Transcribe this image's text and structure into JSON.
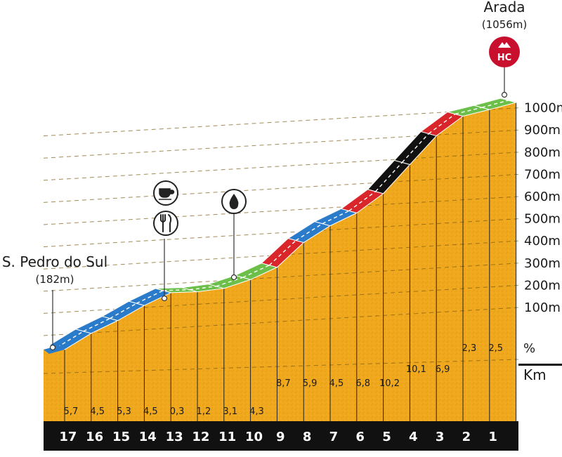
{
  "chart_data": {
    "type": "area",
    "title": "Arada",
    "start": {
      "name": "S. Pedro do Sul",
      "altitude_label": "(182m)",
      "altitude_m": 182
    },
    "finish": {
      "name": "Arada",
      "altitude_label": "(1056m)",
      "altitude_m": 1056,
      "category": "HC"
    },
    "xlabel": "Km",
    "gradient_label": "%",
    "y_ticks": [
      "100m",
      "200m",
      "300m",
      "400m",
      "500m",
      "600m",
      "700m",
      "800m",
      "900m",
      "1000m"
    ],
    "ylim": [
      0,
      1000
    ],
    "km_labels": [
      "17",
      "16",
      "15",
      "14",
      "13",
      "12",
      "11",
      "10",
      "9",
      "8",
      "7",
      "6",
      "5",
      "4",
      "3",
      "2",
      "1"
    ],
    "gradients": [
      "5,7",
      "4,5",
      "5,3",
      "4,5",
      "0,3",
      "1,2",
      "3,1",
      "4,3",
      "8,7",
      "5,9",
      "4,5",
      "6,8",
      "10,2",
      "10,1",
      "6,9",
      "2,3",
      "2,5"
    ],
    "segment_colors": [
      "#2a7bc9",
      "#2a7bc9",
      "#2a7bc9",
      "#2a7bc9",
      "#6cc04a",
      "#6cc04a",
      "#6cc04a",
      "#6cc04a",
      "#d9262b",
      "#2a7bc9",
      "#2a7bc9",
      "#d9262b",
      "#111111",
      "#111111",
      "#d9262b",
      "#6cc04a",
      "#6cc04a"
    ],
    "points_of_interest": [
      {
        "name": "feed-zone",
        "icons": [
          "coffee-cup-icon",
          "fork-knife-icon"
        ],
        "at_km_remaining": 13.5
      },
      {
        "name": "water-point",
        "icons": [
          "water-drop-icon"
        ],
        "at_km_remaining": 11
      }
    ]
  },
  "colors": {
    "fill": "#f0a81c",
    "fill_dark": "#d88a12",
    "front": "#efa51a",
    "km_band": "#111111",
    "km_text": "#ffffff",
    "text": "#1b1b1b",
    "hc_badge": "#c8102e",
    "grid": "#7a5a10"
  }
}
